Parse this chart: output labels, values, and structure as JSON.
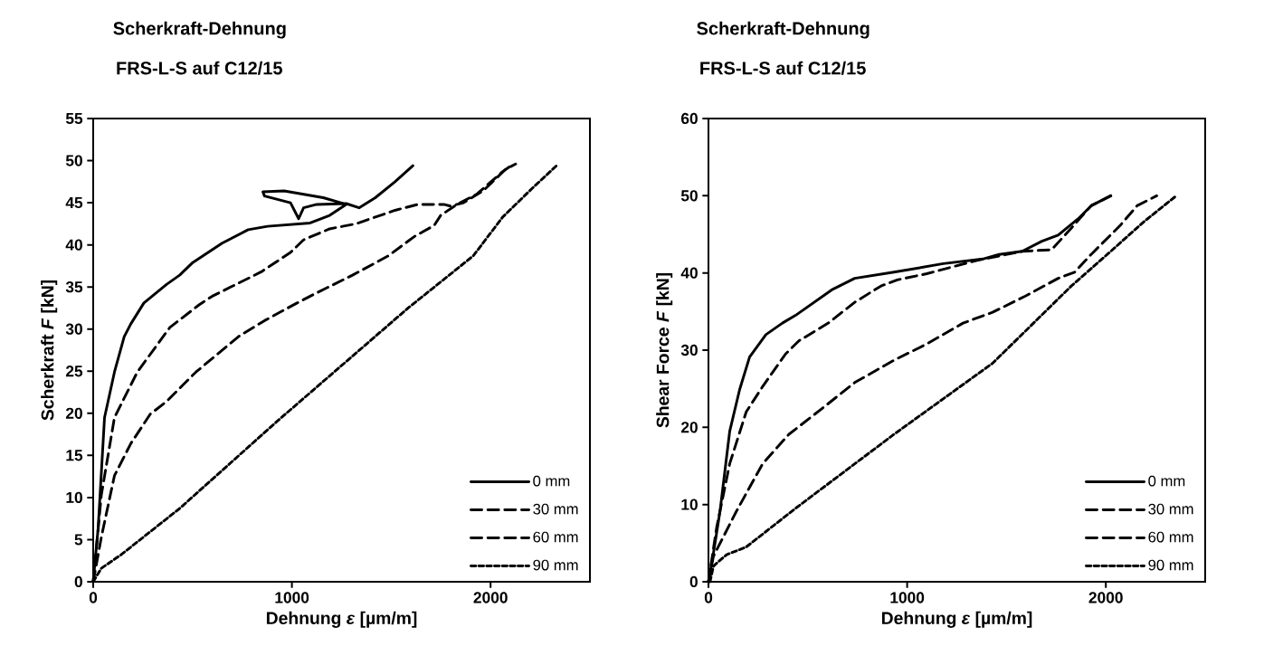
{
  "chart_data": [
    {
      "type": "line",
      "title": "Scherkraft-Dehnung",
      "subtitle": "FRS-L-S auf C12/15",
      "xlabel": "Dehnung *ε* [µm/m]",
      "ylabel": "Scherkraft *F* [kN]",
      "xlim": [
        0,
        2500
      ],
      "xticks": [
        0,
        1000,
        2000
      ],
      "ylim": [
        0,
        55
      ],
      "yticks": [
        0,
        5,
        10,
        15,
        20,
        25,
        30,
        35,
        40,
        45,
        50,
        55
      ],
      "legend": "bottom right",
      "series": [
        {
          "name": "0 mm",
          "color": "#000000",
          "line_style": "solid",
          "x": [
            0,
            25,
            57,
            107,
            156,
            189,
            255,
            369,
            435,
            501,
            649,
            780,
            878,
            1092,
            1190,
            1273,
            1158,
            961,
            854,
            862,
            993,
            1034,
            1059,
            1125,
            1273,
            1338,
            1420,
            1519,
            1609
          ],
          "values": [
            0,
            6.4,
            19.5,
            24.9,
            29.1,
            30.6,
            33.1,
            35.3,
            36.4,
            37.9,
            40.2,
            41.8,
            42.2,
            42.6,
            43.5,
            44.8,
            45.6,
            46.4,
            46.3,
            45.8,
            45.0,
            43.1,
            44.4,
            44.8,
            44.9,
            44.4,
            45.6,
            47.5,
            49.4
          ]
        },
        {
          "name": "30 mm",
          "color": "#000000",
          "line_style": "dashed",
          "x": [
            0,
            41,
            107,
            222,
            386,
            534,
            599,
            846,
            993,
            1059,
            1190,
            1322,
            1519,
            1634,
            1765,
            1798,
            1864,
            1962,
            2077,
            2126
          ],
          "values": [
            0,
            10.3,
            19.5,
            24.9,
            30.2,
            32.9,
            33.9,
            36.8,
            39.1,
            40.6,
            41.9,
            42.5,
            44.1,
            44.8,
            44.8,
            44.6,
            45.0,
            46.4,
            49.0,
            49.6
          ]
        },
        {
          "name": "60 mm",
          "color": "#000000",
          "line_style": "dashed",
          "x": [
            0,
            41,
            107,
            189,
            287,
            369,
            517,
            731,
            862,
            1026,
            1125,
            1305,
            1486,
            1617,
            1716,
            1749,
            1831,
            1929,
            2061,
            2110
          ],
          "values": [
            0,
            5.3,
            12.6,
            16.4,
            19.9,
            21.4,
            24.9,
            29.1,
            31.0,
            33.1,
            34.3,
            36.4,
            38.7,
            41.0,
            42.3,
            43.5,
            44.8,
            46.0,
            48.7,
            49.5
          ]
        },
        {
          "name": "90 mm",
          "color": "#000000",
          "line_style": "dotted",
          "x": [
            0,
            41,
            140,
            435,
            928,
            1585,
            1913,
            2061,
            2209,
            2332
          ],
          "values": [
            0,
            1.6,
            3.2,
            8.7,
            19.1,
            32.5,
            38.7,
            43.3,
            46.7,
            49.4
          ]
        }
      ]
    },
    {
      "type": "line",
      "title": "Scherkraft-Dehnung",
      "subtitle": "FRS-L-S auf C12/15",
      "xlabel": "Dehnung *ε* [µm/m]",
      "ylabel": "Shear Force *F* [kN]",
      "xlim": [
        0,
        2500
      ],
      "xticks": [
        0,
        1000,
        2000
      ],
      "ylim": [
        0,
        60
      ],
      "yticks": [
        0,
        10,
        20,
        30,
        40,
        50,
        60
      ],
      "legend": "bottom right",
      "series": [
        {
          "name": "0 mm",
          "color": "#000000",
          "line_style": "solid",
          "x": [
            0,
            25,
            58,
            107,
            157,
            207,
            289,
            372,
            438,
            620,
            736,
            934,
            1182,
            1380,
            1463,
            1579,
            1678,
            1760,
            1860,
            1926,
            2025
          ],
          "values": [
            0,
            3.7,
            9.1,
            19.5,
            24.9,
            29.1,
            32.0,
            33.5,
            34.5,
            37.8,
            39.3,
            40.1,
            41.2,
            41.8,
            42.4,
            42.8,
            44.1,
            44.9,
            47.0,
            48.7,
            50.0
          ]
        },
        {
          "name": "30 mm",
          "color": "#000000",
          "line_style": "dashed",
          "x": [
            0,
            41,
            107,
            190,
            273,
            388,
            455,
            603,
            736,
            868,
            950,
            1099,
            1347,
            1579,
            1727,
            1826,
            1926,
            2025
          ],
          "values": [
            0,
            7.0,
            15.3,
            22.0,
            25.3,
            29.5,
            31.2,
            33.5,
            36.2,
            38.3,
            39.1,
            39.9,
            41.6,
            42.8,
            43.0,
            45.8,
            48.7,
            50.0
          ]
        },
        {
          "name": "60 mm",
          "color": "#000000",
          "line_style": "dashed",
          "x": [
            0,
            25,
            140,
            273,
            405,
            570,
            736,
            934,
            1099,
            1281,
            1430,
            1595,
            1760,
            1843,
            1926,
            2074,
            2157,
            2256
          ],
          "values": [
            0,
            3.3,
            9.1,
            15.3,
            19.1,
            22.4,
            25.8,
            28.7,
            30.8,
            33.5,
            34.9,
            37.0,
            39.3,
            40.1,
            42.4,
            46.2,
            48.7,
            50.0
          ]
        },
        {
          "name": "90 mm",
          "color": "#000000",
          "line_style": "dotted",
          "x": [
            8,
            25,
            41,
            91,
            190,
            438,
            934,
            1430,
            1826,
            2025,
            2190,
            2355
          ],
          "values": [
            0,
            2.0,
            2.4,
            3.5,
            4.5,
            9.5,
            19.1,
            28.3,
            38.3,
            42.8,
            46.6,
            50.0
          ]
        }
      ]
    }
  ]
}
